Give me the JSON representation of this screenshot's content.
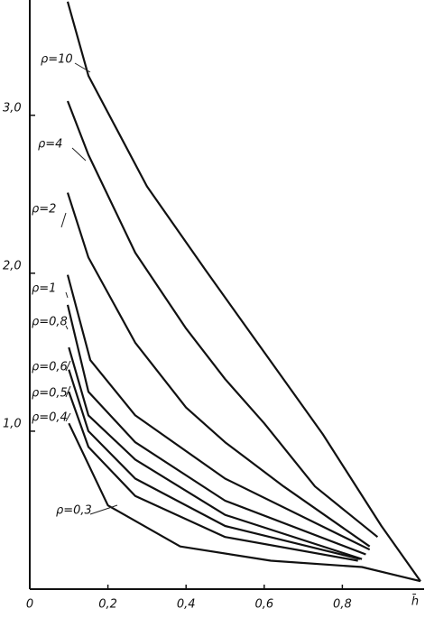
{
  "chart_data": {
    "type": "line",
    "x_label": "h̄",
    "xlim": [
      0,
      1.0
    ],
    "ylim": [
      0,
      3.73
    ],
    "xticks": [
      0,
      {
        "value": 0.2,
        "label": "0,2"
      },
      {
        "value": 0.4,
        "label": "0,4"
      },
      {
        "value": 0.6,
        "label": "0,6"
      },
      {
        "value": 0.8,
        "label": "0,8"
      }
    ],
    "yticks": [
      {
        "value": 1.0,
        "label": "1,0"
      },
      {
        "value": 2.0,
        "label": "2,0"
      },
      {
        "value": 3.0,
        "label": "3,0"
      }
    ],
    "grid": false,
    "series": [
      {
        "name": "ρ=10",
        "color": "#111111",
        "x": [
          0.097,
          0.15,
          0.3,
          0.45,
          0.6,
          0.75,
          0.9,
          1.0
        ],
        "values": [
          3.72,
          3.25,
          2.55,
          2.02,
          1.5,
          0.98,
          0.4,
          0.05
        ]
      },
      {
        "name": "ρ=4",
        "color": "#111111",
        "x": [
          0.097,
          0.15,
          0.27,
          0.4,
          0.5,
          0.6,
          0.73,
          0.89
        ],
        "values": [
          3.09,
          2.75,
          2.13,
          1.65,
          1.33,
          1.05,
          0.65,
          0.33
        ]
      },
      {
        "name": "ρ=2",
        "color": "#111111",
        "x": [
          0.097,
          0.15,
          0.27,
          0.4,
          0.5,
          0.65,
          0.87
        ],
        "values": [
          2.51,
          2.1,
          1.56,
          1.15,
          0.93,
          0.65,
          0.27
        ]
      },
      {
        "name": "ρ=1",
        "color": "#111111",
        "x": [
          0.097,
          0.155,
          0.27,
          0.5,
          0.87
        ],
        "values": [
          1.99,
          1.45,
          1.1,
          0.7,
          0.25
        ]
      },
      {
        "name": "ρ=0,8",
        "color": "#111111",
        "x": [
          0.097,
          0.15,
          0.27,
          0.5,
          0.86
        ],
        "values": [
          1.8,
          1.25,
          0.93,
          0.56,
          0.22
        ]
      },
      {
        "name": "ρ=0,6",
        "color": "#111111",
        "x": [
          0.1,
          0.15,
          0.27,
          0.5,
          0.85
        ],
        "values": [
          1.53,
          1.1,
          0.82,
          0.47,
          0.19
        ]
      },
      {
        "name": "ρ=0,5",
        "color": "#111111",
        "x": [
          0.1,
          0.15,
          0.27,
          0.5,
          0.845
        ],
        "values": [
          1.39,
          1.0,
          0.7,
          0.4,
          0.19
        ]
      },
      {
        "name": "ρ=0,4",
        "color": "#111111",
        "x": [
          0.1,
          0.15,
          0.27,
          0.5,
          0.84
        ],
        "values": [
          1.25,
          0.9,
          0.59,
          0.33,
          0.18
        ]
      },
      {
        "name": "ρ=0,3",
        "color": "#111111",
        "x": [
          0.1,
          0.2,
          0.385,
          0.617,
          0.85,
          1.0
        ],
        "values": [
          1.05,
          0.53,
          0.27,
          0.18,
          0.14,
          0.05
        ]
      }
    ]
  }
}
